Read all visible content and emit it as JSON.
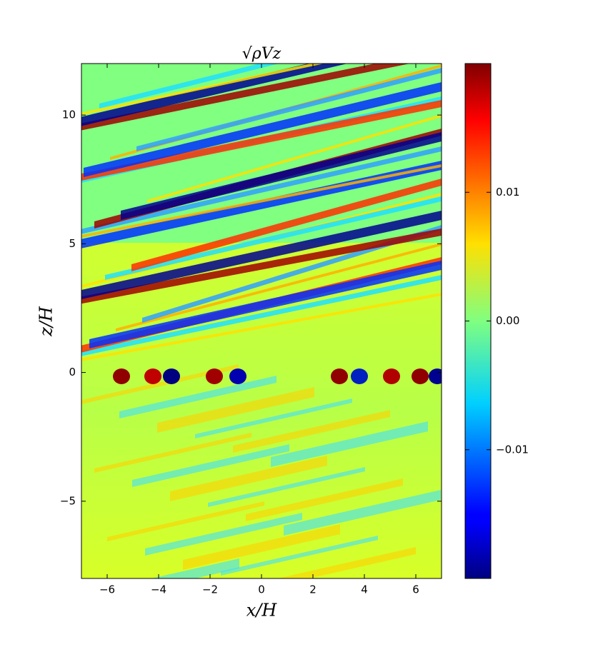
{
  "chart_data": {
    "type": "heatmap",
    "title": "√ρVz",
    "x_label": "x/H",
    "y_label": "z/H",
    "xlim": [
      -7,
      7
    ],
    "ylim": [
      -8,
      12
    ],
    "xticks": [
      {
        "value": -6,
        "label": "−6"
      },
      {
        "value": -4,
        "label": "−4"
      },
      {
        "value": -2,
        "label": "−2"
      },
      0,
      2,
      4,
      6
    ],
    "yticks": [
      {
        "value": -5,
        "label": "−5"
      },
      0,
      5,
      10
    ],
    "colorbar": {
      "clim": [
        -0.02,
        0.02
      ],
      "ticks": [
        {
          "value": -0.01,
          "label": "−0.01"
        },
        {
          "value": 0,
          "label": "0.00"
        },
        0.01
      ]
    },
    "colormap": "jet"
  }
}
